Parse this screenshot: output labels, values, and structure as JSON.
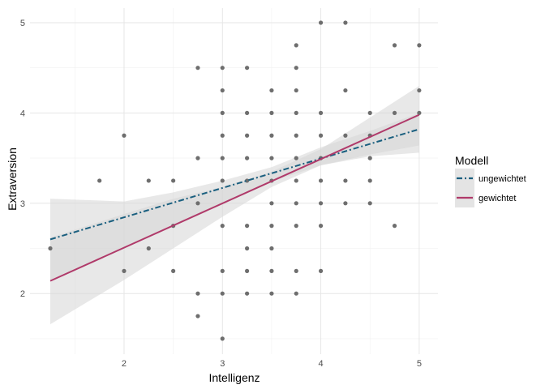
{
  "chart_data": {
    "type": "scatter",
    "xlabel": "Intelligenz",
    "ylabel": "Extraversion",
    "xlim": [
      1.25,
      5.0
    ],
    "ylim": [
      1.5,
      5.0
    ],
    "x_ticks": [
      2,
      3,
      4,
      5
    ],
    "y_ticks": [
      2,
      3,
      4,
      5
    ],
    "x_tick_labels": [
      "2",
      "3",
      "4",
      "5"
    ],
    "y_tick_labels": [
      "2",
      "3",
      "4",
      "5"
    ],
    "grid": true,
    "legend": {
      "title": "Modell",
      "placement": "right",
      "entries": [
        {
          "label": "ungewichtet",
          "color": "#1a5f7f",
          "dash": "dot-dash"
        },
        {
          "label": "gewichtet",
          "color": "#b03a6a",
          "dash": "solid"
        }
      ]
    },
    "points": [
      [
        1.25,
        2.5
      ],
      [
        1.75,
        3.25
      ],
      [
        2.0,
        3.75
      ],
      [
        2.0,
        2.25
      ],
      [
        2.25,
        3.25
      ],
      [
        2.25,
        2.5
      ],
      [
        2.5,
        3.25
      ],
      [
        2.5,
        2.75
      ],
      [
        2.5,
        2.25
      ],
      [
        2.75,
        4.5
      ],
      [
        2.75,
        3.5
      ],
      [
        2.75,
        3.0
      ],
      [
        2.75,
        2.0
      ],
      [
        2.75,
        1.75
      ],
      [
        3.0,
        4.5
      ],
      [
        3.0,
        4.25
      ],
      [
        3.0,
        4.0
      ],
      [
        3.0,
        3.75
      ],
      [
        3.0,
        3.5
      ],
      [
        3.0,
        3.25
      ],
      [
        3.0,
        2.75
      ],
      [
        3.0,
        2.25
      ],
      [
        3.0,
        2.0
      ],
      [
        3.0,
        1.5
      ],
      [
        3.25,
        4.5
      ],
      [
        3.25,
        4.0
      ],
      [
        3.25,
        3.75
      ],
      [
        3.25,
        3.5
      ],
      [
        3.25,
        3.25
      ],
      [
        3.25,
        2.75
      ],
      [
        3.25,
        2.5
      ],
      [
        3.25,
        2.25
      ],
      [
        3.25,
        2.0
      ],
      [
        3.5,
        4.25
      ],
      [
        3.5,
        4.0
      ],
      [
        3.5,
        3.75
      ],
      [
        3.5,
        3.5
      ],
      [
        3.5,
        3.25
      ],
      [
        3.5,
        3.0
      ],
      [
        3.5,
        2.75
      ],
      [
        3.5,
        2.5
      ],
      [
        3.5,
        2.25
      ],
      [
        3.5,
        2.0
      ],
      [
        3.75,
        4.75
      ],
      [
        3.75,
        4.5
      ],
      [
        3.75,
        4.25
      ],
      [
        3.75,
        4.0
      ],
      [
        3.75,
        3.75
      ],
      [
        3.75,
        3.5
      ],
      [
        3.75,
        3.25
      ],
      [
        3.75,
        3.0
      ],
      [
        3.75,
        2.75
      ],
      [
        3.75,
        2.25
      ],
      [
        3.75,
        2.0
      ],
      [
        4.0,
        5.0
      ],
      [
        4.0,
        4.0
      ],
      [
        4.0,
        3.75
      ],
      [
        4.0,
        3.5
      ],
      [
        4.0,
        3.25
      ],
      [
        4.0,
        3.0
      ],
      [
        4.0,
        2.75
      ],
      [
        4.0,
        2.25
      ],
      [
        4.25,
        5.0
      ],
      [
        4.25,
        4.25
      ],
      [
        4.25,
        3.75
      ],
      [
        4.25,
        3.25
      ],
      [
        4.25,
        3.0
      ],
      [
        4.5,
        4.0
      ],
      [
        4.5,
        3.75
      ],
      [
        4.5,
        3.5
      ],
      [
        4.5,
        3.25
      ],
      [
        4.5,
        3.0
      ],
      [
        4.75,
        4.75
      ],
      [
        4.75,
        4.0
      ],
      [
        4.75,
        2.75
      ],
      [
        5.0,
        4.75
      ],
      [
        5.0,
        4.25
      ],
      [
        5.0,
        4.0
      ]
    ],
    "series": [
      {
        "name": "ungewichtet",
        "line": [
          [
            1.25,
            2.6
          ],
          [
            5.0,
            3.82
          ]
        ],
        "ci_lower": [
          [
            1.25,
            2.15
          ],
          [
            2.0,
            2.5
          ],
          [
            2.5,
            2.75
          ],
          [
            3.0,
            3.0
          ],
          [
            3.5,
            3.24
          ],
          [
            4.0,
            3.42
          ],
          [
            4.5,
            3.54
          ],
          [
            5.0,
            3.64
          ]
        ],
        "ci_upper": [
          [
            1.25,
            3.05
          ],
          [
            2.0,
            3.02
          ],
          [
            2.5,
            3.12
          ],
          [
            3.0,
            3.25
          ],
          [
            3.5,
            3.4
          ],
          [
            4.0,
            3.62
          ],
          [
            4.5,
            3.8
          ],
          [
            5.0,
            4.0
          ]
        ]
      },
      {
        "name": "gewichtet",
        "line": [
          [
            1.25,
            2.14
          ],
          [
            5.0,
            3.98
          ]
        ],
        "ci_lower": [
          [
            1.25,
            1.66
          ],
          [
            2.0,
            2.15
          ],
          [
            2.5,
            2.5
          ],
          [
            3.0,
            2.85
          ],
          [
            3.5,
            3.18
          ],
          [
            4.0,
            3.42
          ],
          [
            4.5,
            3.52
          ],
          [
            5.0,
            3.56
          ]
        ],
        "ci_upper": [
          [
            1.25,
            2.62
          ],
          [
            2.0,
            2.88
          ],
          [
            2.5,
            3.05
          ],
          [
            3.0,
            3.18
          ],
          [
            3.5,
            3.35
          ],
          [
            4.0,
            3.6
          ],
          [
            4.5,
            3.95
          ],
          [
            5.0,
            4.3
          ]
        ]
      }
    ],
    "colors": {
      "point": "#6e6e6e",
      "band": "#d6d6d6",
      "grid_major": "#e6e6e6",
      "grid_minor": "#f0f0f0"
    }
  }
}
